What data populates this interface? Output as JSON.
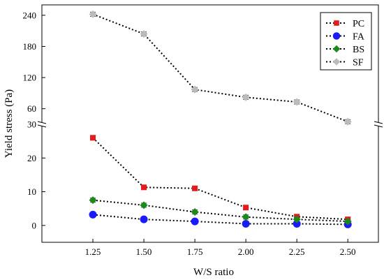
{
  "chart_data": {
    "type": "line",
    "xlabel": "W/S ratio",
    "ylabel": "Yield stress (Pa)",
    "x": [
      1.25,
      1.5,
      1.75,
      2.0,
      2.25,
      2.5
    ],
    "x_tick_labels": [
      "1.25",
      "1.50",
      "1.75",
      "2.00",
      "2.25",
      "2.50"
    ],
    "xlim": [
      1.0,
      2.65
    ],
    "y_axis_broken": true,
    "y_lower": {
      "ylim": [
        -5,
        30
      ],
      "ticks": [
        0,
        10,
        20,
        30
      ],
      "tick_labels": [
        "0",
        "10",
        "20",
        "30"
      ]
    },
    "y_upper": {
      "ylim": [
        30,
        260
      ],
      "ticks": [
        60,
        120,
        180,
        240
      ],
      "tick_labels": [
        "60",
        "120",
        "180",
        "240"
      ]
    },
    "legend_position": "top-right",
    "line_style": "dotted",
    "series": [
      {
        "name": "PC",
        "marker": "square",
        "color": "#e41a1c",
        "values": [
          26,
          11.3,
          11,
          5.3,
          2.6,
          1.8
        ]
      },
      {
        "name": "FA",
        "marker": "circle",
        "color": "#1a1aff",
        "values": [
          3.2,
          1.8,
          1.2,
          0.5,
          0.5,
          0.3
        ]
      },
      {
        "name": "BS",
        "marker": "diamond",
        "color": "#1b8a1b",
        "values": [
          7.5,
          6,
          4,
          2.5,
          1.8,
          1.2
        ]
      },
      {
        "name": "SF",
        "marker": "diamond",
        "color": "#bbbbbb",
        "values": [
          242,
          204,
          97,
          82,
          73,
          35
        ]
      }
    ]
  }
}
